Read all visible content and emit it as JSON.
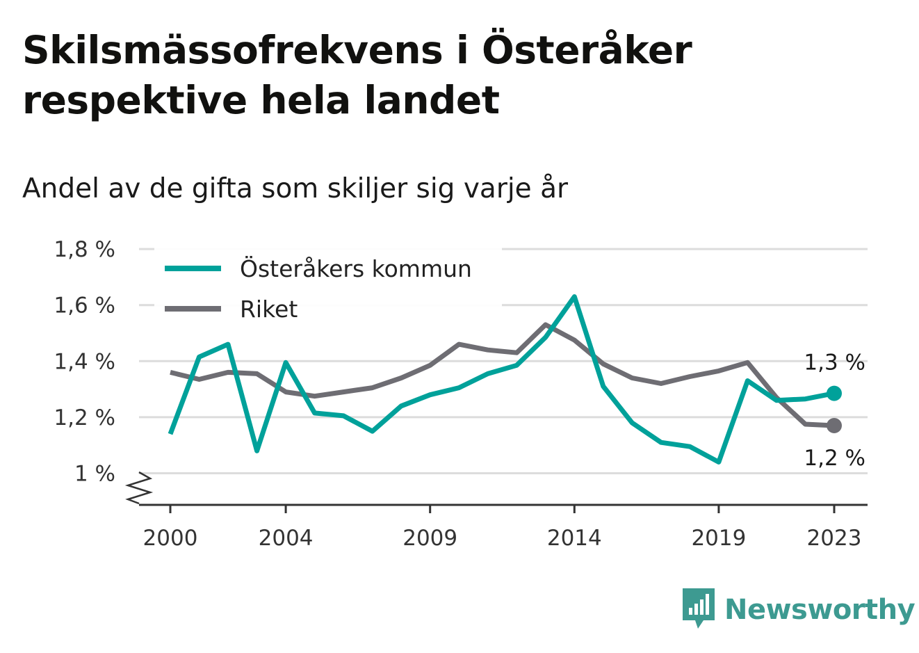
{
  "header": {
    "title": "Skilsmässofrekvens i Österåker respektive hela landet",
    "subtitle": "Andel av de gifta som skiljer sig varje år"
  },
  "brand": {
    "name": "Newsworthy",
    "icon": "bar-chart-logo-icon",
    "color": "#3d9a91"
  },
  "chart_data": {
    "type": "line",
    "x": [
      2000,
      2001,
      2002,
      2003,
      2004,
      2005,
      2006,
      2007,
      2008,
      2009,
      2010,
      2011,
      2012,
      2013,
      2014,
      2015,
      2016,
      2017,
      2018,
      2019,
      2020,
      2021,
      2022,
      2023
    ],
    "x_ticks": [
      2000,
      2004,
      2009,
      2014,
      2019,
      2023
    ],
    "x_tick_labels": [
      "2000",
      "2004",
      "2009",
      "2014",
      "2019",
      "2023"
    ],
    "y_ticks": [
      1.0,
      1.2,
      1.4,
      1.6,
      1.8
    ],
    "y_tick_labels": [
      "1 %",
      "1,2 %",
      "1,4 %",
      "1,6 %",
      "1,8 %"
    ],
    "ylim": [
      0.89,
      1.8
    ],
    "y_axis_break": true,
    "grid": true,
    "legend_position": "top-left",
    "series": [
      {
        "name": "Österåkers kommun",
        "color": "#00a19a",
        "values": [
          1.14,
          1.415,
          1.46,
          1.08,
          1.395,
          1.215,
          1.205,
          1.15,
          1.24,
          1.28,
          1.305,
          1.355,
          1.385,
          1.485,
          1.63,
          1.31,
          1.18,
          1.11,
          1.095,
          1.04,
          1.33,
          1.26,
          1.265,
          1.285
        ],
        "end_label": "1,3 %"
      },
      {
        "name": "Riket",
        "color": "#6e6d73",
        "values": [
          1.36,
          1.335,
          1.36,
          1.355,
          1.29,
          1.275,
          1.29,
          1.305,
          1.34,
          1.385,
          1.46,
          1.44,
          1.43,
          1.53,
          1.475,
          1.39,
          1.34,
          1.32,
          1.345,
          1.365,
          1.395,
          1.27,
          1.175,
          1.17
        ],
        "end_label": "1,2 %"
      }
    ]
  }
}
